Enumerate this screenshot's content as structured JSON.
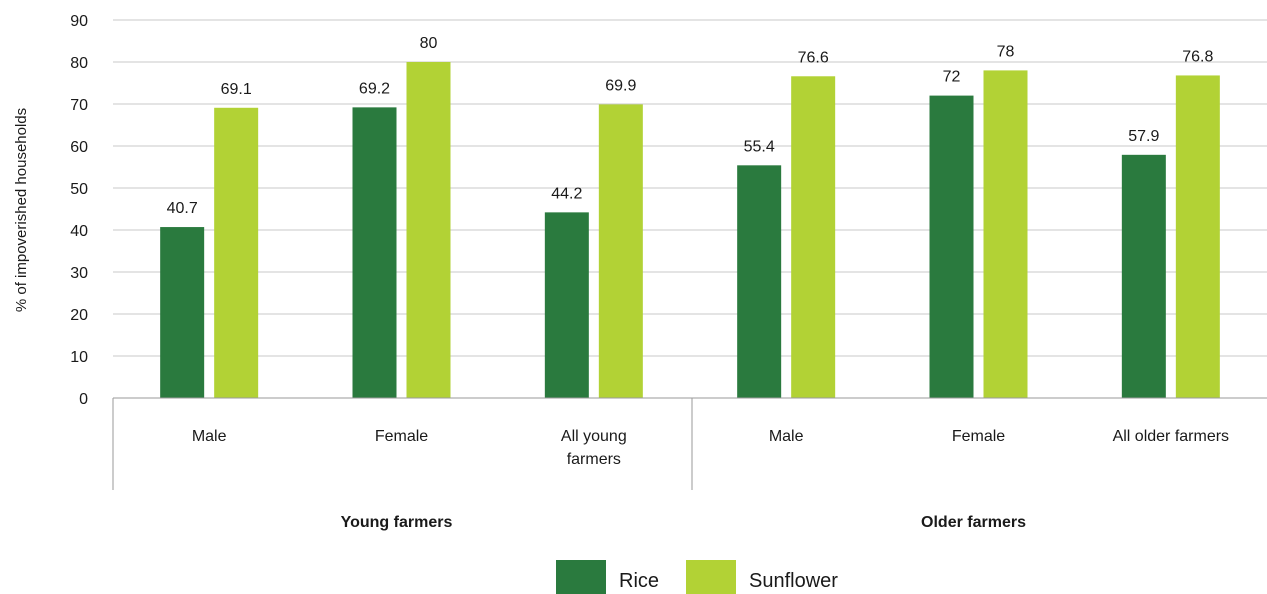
{
  "chart_data": {
    "type": "bar",
    "ylabel": "% of impoverished households",
    "ylim": [
      0,
      90
    ],
    "yticks": [
      0,
      10,
      20,
      30,
      40,
      50,
      60,
      70,
      80,
      90
    ],
    "grid": true,
    "legend_position": "bottom",
    "groups": [
      {
        "name": "Young farmers",
        "categories": [
          "Male",
          "Female",
          "All young farmers"
        ]
      },
      {
        "name": "Older farmers",
        "categories": [
          "Male",
          "Female",
          "All older farmers"
        ]
      }
    ],
    "categories": [
      "Male",
      "Female",
      "All young farmers",
      "Male",
      "Female",
      "All older farmers"
    ],
    "category_lines": [
      [
        "Male"
      ],
      [
        "Female"
      ],
      [
        "All young",
        "farmers"
      ],
      [
        "Male"
      ],
      [
        "Female"
      ],
      [
        "All older farmers"
      ]
    ],
    "series": [
      {
        "name": "Rice",
        "color": "#2a7a3e",
        "values": [
          40.7,
          69.2,
          44.2,
          55.4,
          72,
          57.9
        ]
      },
      {
        "name": "Sunflower",
        "color": "#b2d235",
        "values": [
          69.1,
          80,
          69.9,
          76.6,
          78,
          76.8
        ]
      }
    ]
  }
}
